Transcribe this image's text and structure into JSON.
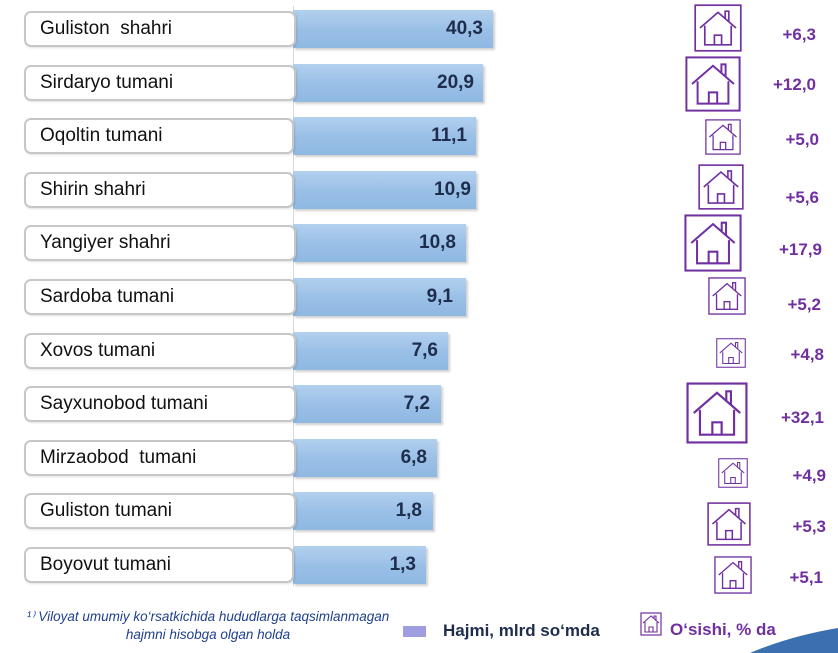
{
  "chart_data": {
    "type": "bar",
    "categories": [
      "Guliston  shahri",
      "Sirdaryo tumani",
      "Oqoltin tumani",
      "Shirin shahri",
      "Yangiyer shahri",
      "Sardoba tumani",
      "Xovos tumani",
      "Sayxunobod tumani",
      "Mirzaobod  tumani",
      "Guliston tumani",
      "Boyovut tumani"
    ],
    "series": [
      {
        "name": "Hajmi, mlrd so‘mda",
        "values": [
          40.3,
          20.9,
          11.1,
          10.9,
          10.8,
          9.1,
          7.6,
          7.2,
          6.8,
          1.8,
          1.3
        ],
        "labels": [
          "40,3",
          "20,9",
          "11,1",
          "10,9",
          "10,8",
          "9,1",
          "7,6",
          "7,2",
          "6,8",
          "1,8",
          "1,3"
        ],
        "color": "#9fc4ea"
      },
      {
        "name": "O‘sishi, % da",
        "values": [
          6.3,
          12.0,
          5.0,
          5.6,
          17.9,
          5.2,
          4.8,
          32.1,
          4.9,
          5.3,
          5.1
        ],
        "labels": [
          "+6,3",
          "+12,0",
          "+5,0",
          "+5,6",
          "+17,9",
          "+5,2",
          "+4,8",
          "+32,1",
          "+4,9",
          "+5,3",
          "+5,1"
        ],
        "color": "#7030a0"
      }
    ],
    "footnote": "¹⁾ Viloyat umumiy ko‘rsatkichida hududlarga taqsimlanmagan hajmni hisobga olgan holda",
    "legend_position": "bottom",
    "grid": false
  },
  "legend": {
    "volume_label": "Hajmi, mlrd so‘mda",
    "growth_label": "O‘sishi, % da",
    "volume_color": "#9e9ee0",
    "growth_color": "#7030a0",
    "growth_icon": "house-icon"
  }
}
